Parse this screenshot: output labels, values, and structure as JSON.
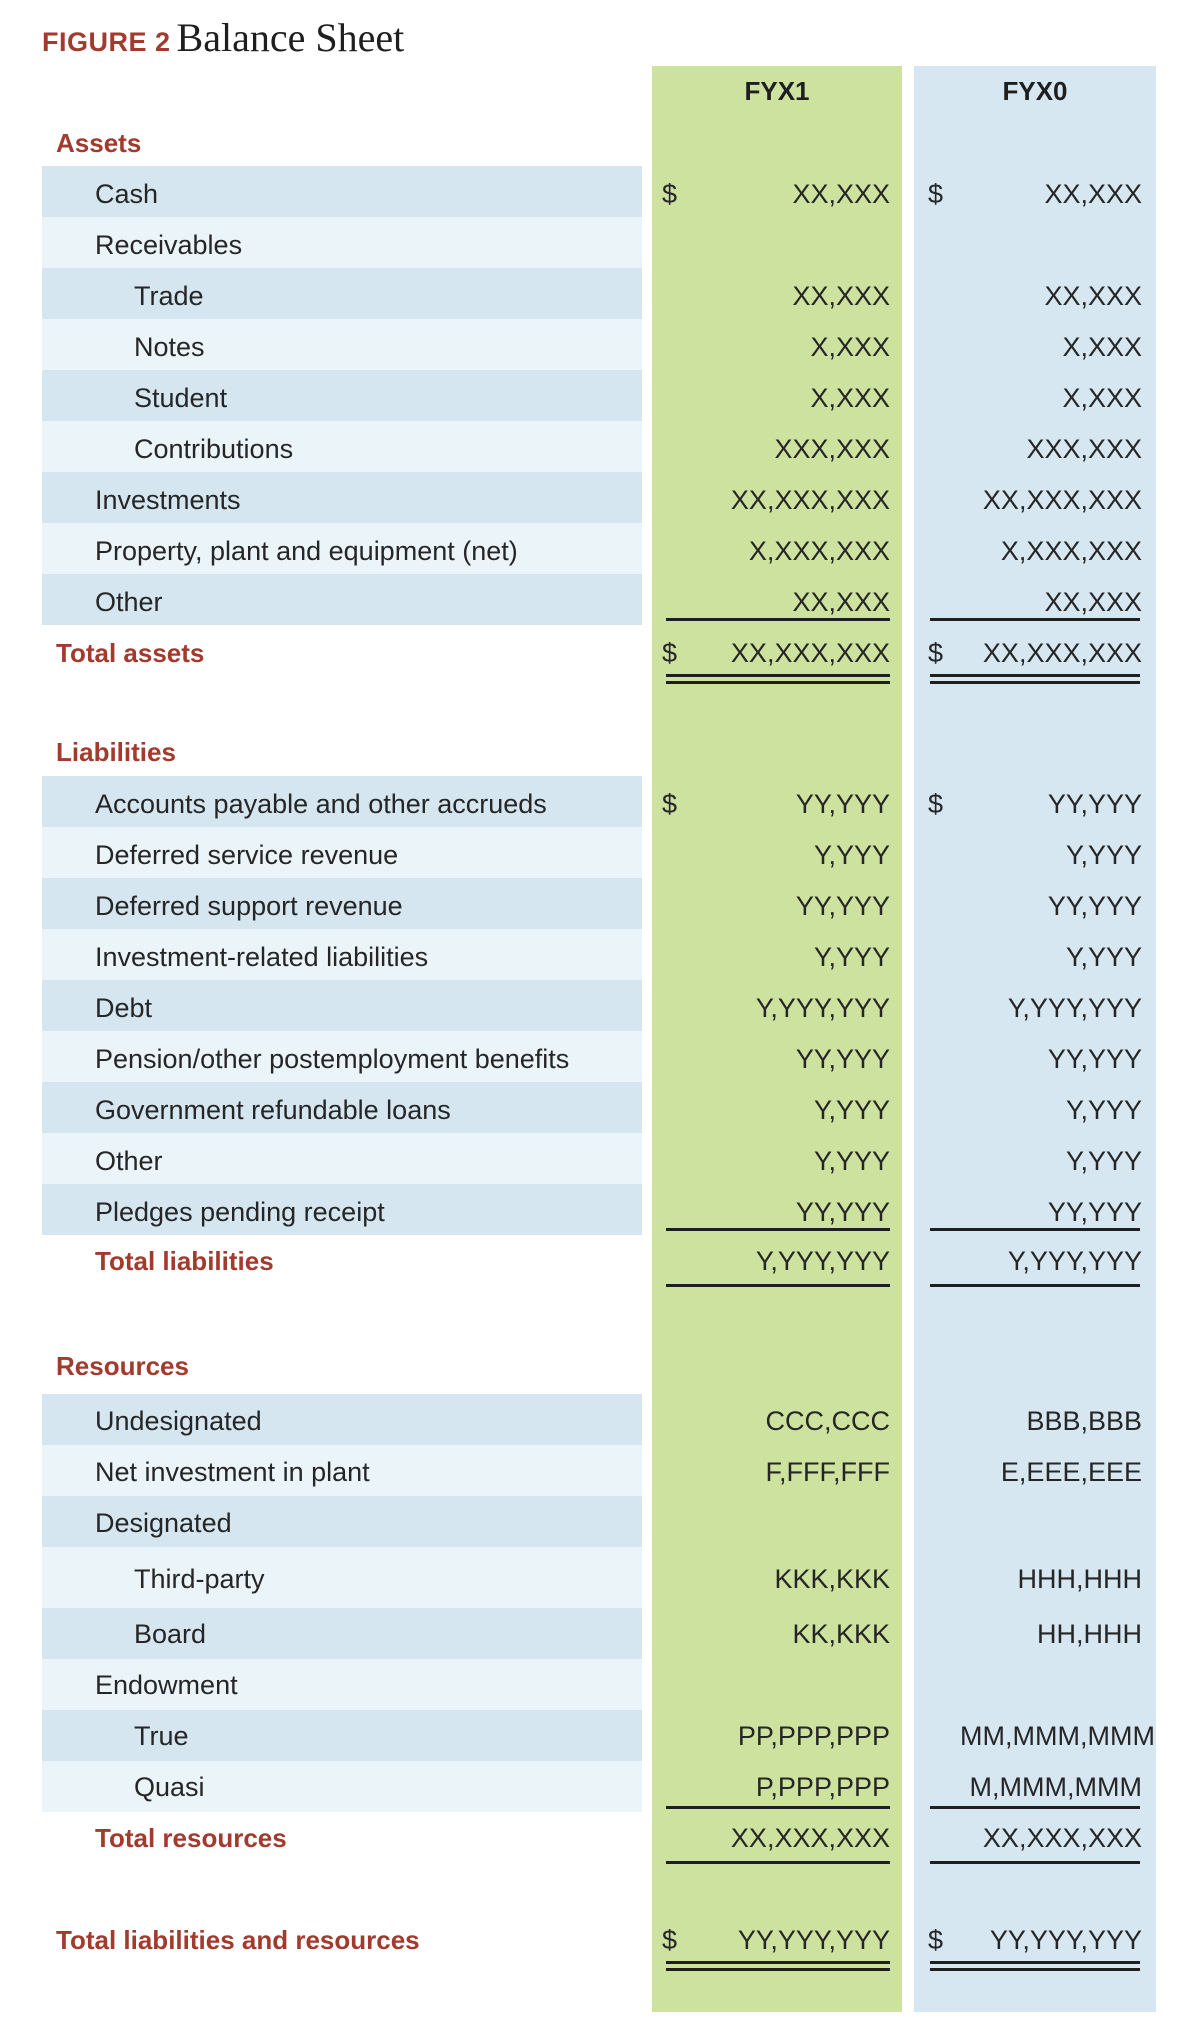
{
  "figure": {
    "label": "FIGURE 2",
    "title": "Balance Sheet"
  },
  "columns": [
    "FYX1",
    "FYX0"
  ],
  "currency": "$",
  "colors": {
    "accent": "#a33a2e",
    "fyx1_bg": "#cde29e",
    "fyx0_bg": "#d6e7f2",
    "band_dark": "#d5e6f1",
    "band_light": "#ebf4f9"
  },
  "assets": {
    "heading": "Assets",
    "rows": [
      {
        "label": "Cash",
        "fyx1": "XX,XXX",
        "fyx0": "XX,XXX"
      },
      {
        "label": "Receivables",
        "fyx1": "",
        "fyx0": ""
      },
      {
        "label": "Trade",
        "fyx1": "XX,XXX",
        "fyx0": "XX,XXX"
      },
      {
        "label": "Notes",
        "fyx1": "X,XXX",
        "fyx0": "X,XXX"
      },
      {
        "label": "Student",
        "fyx1": "X,XXX",
        "fyx0": "X,XXX"
      },
      {
        "label": "Contributions",
        "fyx1": "XXX,XXX",
        "fyx0": "XXX,XXX"
      },
      {
        "label": "Investments",
        "fyx1": "XX,XXX,XXX",
        "fyx0": "XX,XXX,XXX"
      },
      {
        "label": "Property, plant and equipment (net)",
        "fyx1": "X,XXX,XXX",
        "fyx0": "X,XXX,XXX"
      },
      {
        "label": "Other",
        "fyx1": "XX,XXX",
        "fyx0": "XX,XXX"
      }
    ],
    "total": {
      "label": "Total assets",
      "fyx1": "XX,XXX,XXX",
      "fyx0": "XX,XXX,XXX"
    }
  },
  "liabilities": {
    "heading": "Liabilities",
    "rows": [
      {
        "label": "Accounts payable and other accrueds",
        "fyx1": "YY,YYY",
        "fyx0": "YY,YYY"
      },
      {
        "label": "Deferred service revenue",
        "fyx1": "Y,YYY",
        "fyx0": "Y,YYY"
      },
      {
        "label": "Deferred support revenue",
        "fyx1": "YY,YYY",
        "fyx0": "YY,YYY"
      },
      {
        "label": "Investment-related liabilities",
        "fyx1": "Y,YYY",
        "fyx0": "Y,YYY"
      },
      {
        "label": "Debt",
        "fyx1": "Y,YYY,YYY",
        "fyx0": "Y,YYY,YYY"
      },
      {
        "label": "Pension/other postemployment benefits",
        "fyx1": "YY,YYY",
        "fyx0": "YY,YYY"
      },
      {
        "label": "Government refundable loans",
        "fyx1": "Y,YYY",
        "fyx0": "Y,YYY"
      },
      {
        "label": "Other",
        "fyx1": "Y,YYY",
        "fyx0": "Y,YYY"
      },
      {
        "label": "Pledges pending receipt",
        "fyx1": "YY,YYY",
        "fyx0": "YY,YYY"
      }
    ],
    "total": {
      "label": "Total liabilities",
      "fyx1": "Y,YYY,YYY",
      "fyx0": "Y,YYY,YYY"
    }
  },
  "resources": {
    "heading": "Resources",
    "rows": [
      {
        "label": "Undesignated",
        "fyx1": "CCC,CCC",
        "fyx0": "BBB,BBB"
      },
      {
        "label": "Net investment in plant",
        "fyx1": "F,FFF,FFF",
        "fyx0": "E,EEE,EEE"
      },
      {
        "label": "Designated",
        "fyx1": "",
        "fyx0": ""
      },
      {
        "label": "Third-party",
        "fyx1": "KKK,KKK",
        "fyx0": "HHH,HHH"
      },
      {
        "label": "Board",
        "fyx1": "KK,KKK",
        "fyx0": "HH,HHH"
      },
      {
        "label": "Endowment",
        "fyx1": "",
        "fyx0": ""
      },
      {
        "label": "True",
        "fyx1": "PP,PPP,PPP",
        "fyx0": "MM,MMM,MMM"
      },
      {
        "label": "Quasi",
        "fyx1": "P,PPP,PPP",
        "fyx0": "M,MMM,MMM"
      }
    ],
    "total": {
      "label": "Total resources",
      "fyx1": "XX,XXX,XXX",
      "fyx0": "XX,XXX,XXX"
    }
  },
  "grand_total": {
    "label": "Total liabilities and resources",
    "fyx1": "YY,YYY,YYY",
    "fyx0": "YY,YYY,YYY"
  }
}
